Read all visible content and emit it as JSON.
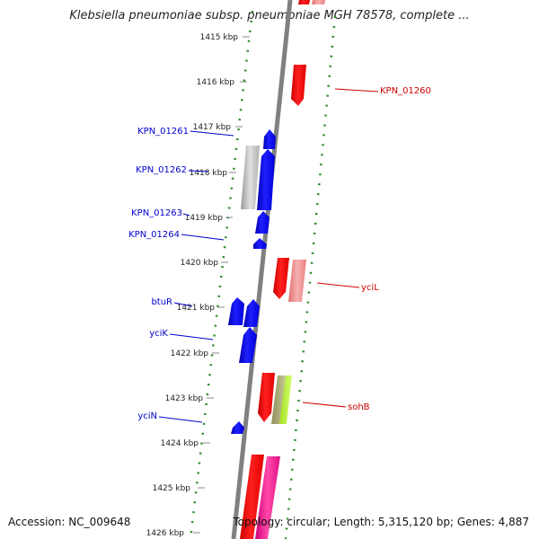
{
  "header": {
    "title": "Klebsiella pneumoniae subsp. pneumoniae MGH 78578, complete ..."
  },
  "footer": {
    "accession": "Accession: NC_009648",
    "summary": "Topology: circular; Length: 5,315,120 bp; Genes: 4,887"
  },
  "colors": {
    "backbone": "#7f7f7f",
    "dotted_track": "#2a8a2a",
    "forward_gene": "#0000ff",
    "reverse_gene": "#ff0000",
    "forward_label": "#0000cc",
    "reverse_label": "#cc0000"
  },
  "ticks": [
    "1415 kbp",
    "1416 kbp",
    "1417 kbp",
    "1418 kbp",
    "1419 kbp",
    "1420 kbp",
    "1421 kbp",
    "1422 kbp",
    "1423 kbp",
    "1424 kbp",
    "1425 kbp",
    "1426 kbp"
  ],
  "labels": {
    "left": [
      "KPN_01261",
      "KPN_01262",
      "KPN_01263",
      "KPN_01264",
      "btuR",
      "yciK",
      "yciN"
    ],
    "right": [
      "KPN_01260",
      "yciL",
      "sohB"
    ]
  }
}
